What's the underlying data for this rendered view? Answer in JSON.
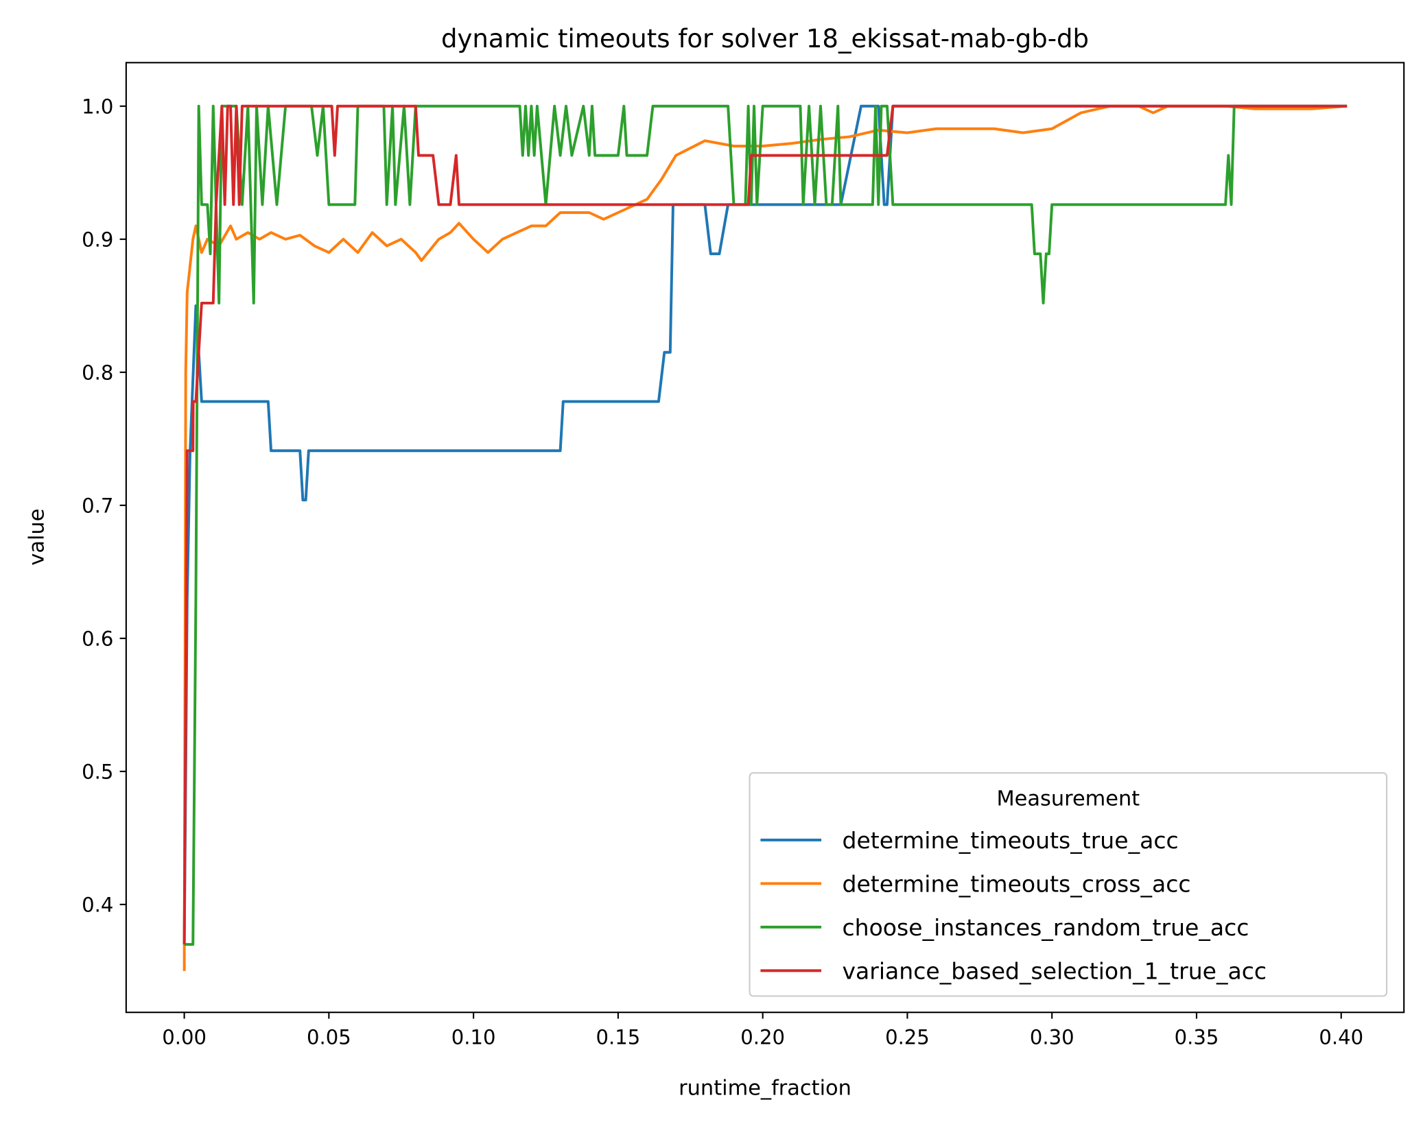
{
  "chart_data": {
    "type": "line",
    "title": "dynamic timeouts for solver 18_ekissat-mab-gb-db",
    "x_label": "runtime_fraction",
    "y_label": "value",
    "xlim": [
      -0.0201,
      0.4217
    ],
    "ylim": [
      0.3189,
      1.0327
    ],
    "xticks": [
      {
        "value": 0,
        "label": "0.00"
      },
      {
        "value": 0.05,
        "label": "0.05"
      },
      {
        "value": 0.1,
        "label": "0.10"
      },
      {
        "value": 0.15,
        "label": "0.15"
      },
      {
        "value": 0.2,
        "label": "0.20"
      },
      {
        "value": 0.25,
        "label": "0.25"
      },
      {
        "value": 0.3,
        "label": "0.30"
      },
      {
        "value": 0.35,
        "label": "0.35"
      },
      {
        "value": 0.4,
        "label": "0.40"
      }
    ],
    "yticks": [
      0.4,
      0.5,
      0.6,
      0.7,
      0.8,
      0.9,
      {
        "value": 1.0,
        "label": "1.0"
      }
    ],
    "grid": false,
    "legend_title": "Measurement",
    "legend_position": "lower right",
    "series": [
      {
        "name": "determine_timeouts_true_acc",
        "color": "#1f77b4",
        "x": [
          0,
          0.001,
          0.002,
          0.004,
          0.005,
          0.006,
          0.029,
          0.03,
          0.04,
          0.041,
          0.042,
          0.043,
          0.13,
          0.131,
          0.164,
          0.166,
          0.168,
          0.169,
          0.18,
          0.182,
          0.185,
          0.188,
          0.227,
          0.234,
          0.24,
          0.242,
          0.243,
          0.245,
          0.402
        ],
        "values": [
          0.37,
          0.63,
          0.74,
          0.85,
          0.815,
          0.778,
          0.778,
          0.741,
          0.741,
          0.704,
          0.704,
          0.741,
          0.741,
          0.778,
          0.778,
          0.815,
          0.815,
          0.926,
          0.926,
          0.889,
          0.889,
          0.926,
          0.926,
          1.0,
          1.0,
          0.926,
          0.926,
          1.0,
          1.0
        ]
      },
      {
        "name": "determine_timeouts_cross_acc",
        "color": "#ff7f0e",
        "x": [
          0,
          0.0005,
          0.001,
          0.002,
          0.003,
          0.004,
          0.006,
          0.008,
          0.012,
          0.016,
          0.018,
          0.022,
          0.026,
          0.03,
          0.035,
          0.04,
          0.045,
          0.05,
          0.055,
          0.06,
          0.065,
          0.07,
          0.075,
          0.08,
          0.082,
          0.088,
          0.092,
          0.095,
          0.1,
          0.105,
          0.11,
          0.115,
          0.12,
          0.125,
          0.13,
          0.14,
          0.145,
          0.15,
          0.16,
          0.165,
          0.17,
          0.18,
          0.19,
          0.2,
          0.21,
          0.22,
          0.23,
          0.24,
          0.25,
          0.26,
          0.28,
          0.29,
          0.3,
          0.31,
          0.32,
          0.33,
          0.335,
          0.34,
          0.36,
          0.37,
          0.39,
          0.402
        ],
        "values": [
          0.35,
          0.8,
          0.86,
          0.88,
          0.9,
          0.91,
          0.89,
          0.9,
          0.895,
          0.91,
          0.9,
          0.905,
          0.9,
          0.905,
          0.9,
          0.903,
          0.895,
          0.89,
          0.9,
          0.89,
          0.905,
          0.895,
          0.9,
          0.89,
          0.884,
          0.9,
          0.905,
          0.912,
          0.9,
          0.89,
          0.9,
          0.905,
          0.91,
          0.91,
          0.92,
          0.92,
          0.915,
          0.92,
          0.93,
          0.945,
          0.963,
          0.974,
          0.97,
          0.97,
          0.972,
          0.975,
          0.977,
          0.982,
          0.98,
          0.983,
          0.983,
          0.98,
          0.983,
          0.995,
          1.0,
          1.0,
          0.995,
          1.0,
          1.0,
          0.998,
          0.998,
          1.0
        ]
      },
      {
        "name": "choose_instances_random_true_acc",
        "color": "#2ca02c",
        "x": [
          0,
          0.003,
          0.004,
          0.005,
          0.006,
          0.008,
          0.009,
          0.01,
          0.011,
          0.012,
          0.013,
          0.018,
          0.02,
          0.022,
          0.024,
          0.025,
          0.027,
          0.029,
          0.032,
          0.035,
          0.044,
          0.046,
          0.048,
          0.05,
          0.059,
          0.06,
          0.069,
          0.07,
          0.072,
          0.073,
          0.076,
          0.078,
          0.08,
          0.116,
          0.117,
          0.118,
          0.119,
          0.12,
          0.121,
          0.122,
          0.125,
          0.128,
          0.13,
          0.132,
          0.134,
          0.138,
          0.14,
          0.141,
          0.142,
          0.15,
          0.152,
          0.153,
          0.16,
          0.162,
          0.188,
          0.19,
          0.194,
          0.195,
          0.196,
          0.197,
          0.198,
          0.2,
          0.213,
          0.214,
          0.216,
          0.218,
          0.22,
          0.222,
          0.224,
          0.226,
          0.227,
          0.238,
          0.239,
          0.24,
          0.241,
          0.243,
          0.245,
          0.293,
          0.294,
          0.296,
          0.297,
          0.298,
          0.299,
          0.3,
          0.36,
          0.361,
          0.362,
          0.363,
          0.402
        ],
        "values": [
          0.37,
          0.37,
          0.63,
          1.0,
          0.926,
          0.926,
          0.889,
          1.0,
          0.926,
          0.852,
          1.0,
          1.0,
          0.926,
          1.0,
          0.852,
          1.0,
          0.926,
          1.0,
          0.926,
          1.0,
          1.0,
          0.963,
          1.0,
          0.926,
          0.926,
          1.0,
          1.0,
          0.926,
          1.0,
          0.926,
          1.0,
          0.926,
          1.0,
          1.0,
          0.963,
          1.0,
          0.963,
          1.0,
          0.963,
          1.0,
          0.926,
          1.0,
          0.963,
          1.0,
          0.963,
          1.0,
          0.963,
          1.0,
          0.963,
          0.963,
          1.0,
          0.963,
          0.963,
          1.0,
          1.0,
          0.926,
          0.926,
          1.0,
          0.926,
          1.0,
          0.926,
          1.0,
          1.0,
          0.926,
          1.0,
          0.926,
          1.0,
          0.926,
          0.926,
          1.0,
          0.926,
          0.926,
          1.0,
          0.926,
          1.0,
          1.0,
          0.926,
          0.926,
          0.889,
          0.889,
          0.852,
          0.889,
          0.889,
          0.926,
          0.926,
          0.963,
          0.926,
          1.0,
          1.0
        ]
      },
      {
        "name": "variance_based_selection_1_true_acc",
        "color": "#d62728",
        "x": [
          0,
          0.001,
          0.003,
          0.0031,
          0.004,
          0.005,
          0.006,
          0.01,
          0.011,
          0.013,
          0.014,
          0.015,
          0.016,
          0.017,
          0.018,
          0.019,
          0.02,
          0.051,
          0.052,
          0.053,
          0.08,
          0.081,
          0.086,
          0.088,
          0.092,
          0.094,
          0.095,
          0.195,
          0.196,
          0.243,
          0.245,
          0.402
        ],
        "values": [
          0.37,
          0.741,
          0.741,
          0.778,
          0.778,
          0.815,
          0.852,
          0.852,
          0.926,
          1.0,
          0.926,
          1.0,
          1.0,
          0.926,
          1.0,
          0.926,
          1.0,
          1.0,
          0.963,
          1.0,
          1.0,
          0.963,
          0.963,
          0.926,
          0.926,
          0.963,
          0.926,
          0.926,
          0.963,
          0.963,
          1.0,
          1.0
        ]
      }
    ]
  }
}
